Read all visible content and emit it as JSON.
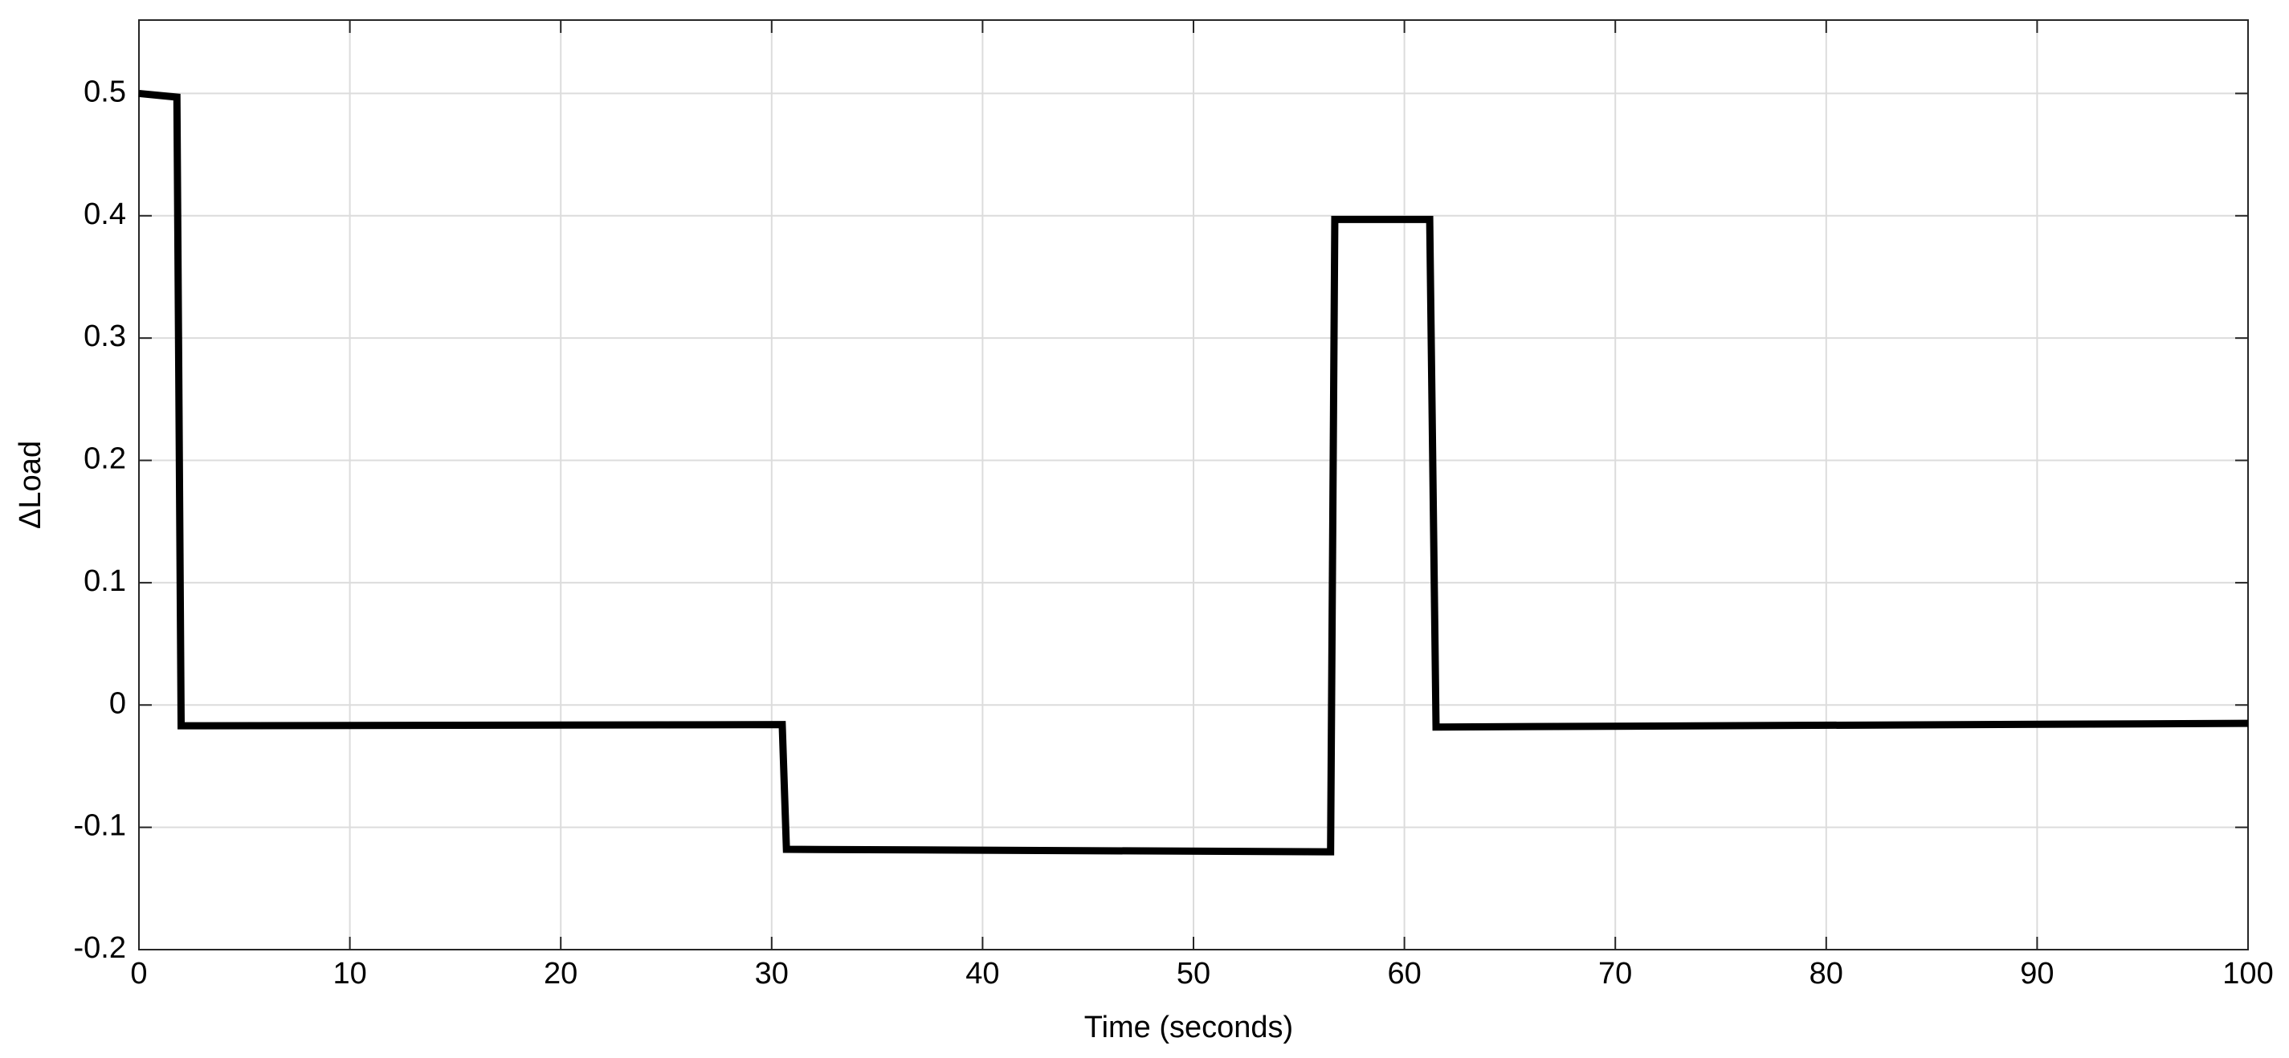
{
  "chart_data": {
    "type": "line",
    "xlabel": "Time (seconds)",
    "ylabel": "ΔLoad",
    "x": [
      0,
      1.8,
      2,
      30.5,
      30.7,
      56.5,
      56.7,
      61.2,
      61.5,
      100
    ],
    "series": [
      {
        "color": "#000000",
        "values": [
          0.5,
          0.497,
          -0.017,
          -0.016,
          -0.118,
          -0.12,
          0.397,
          0.397,
          -0.018,
          -0.015
        ]
      }
    ],
    "xlim": [
      0,
      100
    ],
    "xticks": [
      0,
      10,
      20,
      30,
      40,
      50,
      60,
      70,
      80,
      90,
      100
    ],
    "ylim": [
      -0.2,
      0.56
    ],
    "yticks": [
      -0.2,
      -0.1,
      0,
      0.1,
      0.2,
      0.3,
      0.4,
      0.5
    ],
    "grid": true
  }
}
